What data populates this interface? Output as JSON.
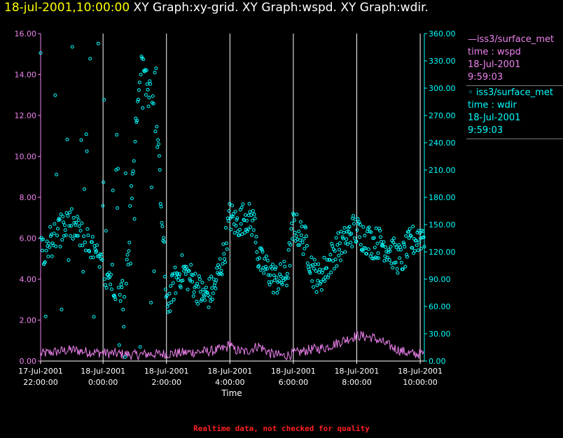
{
  "header": {
    "timestamp": "18-jul-2001,10:00:00",
    "titles": " XY Graph:xy-grid.  XY Graph:wspd.  XY Graph:wdir."
  },
  "legend": {
    "wspd": {
      "name": "iss3/surface_met",
      "line2": "time : wspd",
      "line3": "18-Jul-2001",
      "line4": "9:59:03"
    },
    "wdir": {
      "name": "iss3/surface_met",
      "line2": "time : wdir",
      "line3": "18-Jul-2001",
      "line4": "9:59:03"
    }
  },
  "footer": {
    "note": "Realtime data, not checked for quality"
  },
  "colors": {
    "wspd": "#ee82ee",
    "wdir": "#00ffff",
    "grid": "#ffffff",
    "header_ts": "#ffff00",
    "footer": "#ff2020"
  },
  "chart_data": {
    "type": "line",
    "xlabel": "Time",
    "x_range_hours": [
      -1.969,
      10.131
    ],
    "x_ticks": [
      {
        "h": -1.969,
        "date": "17-Jul-2001",
        "time": "22:00:00"
      },
      {
        "h": 0.0,
        "date": "18-Jul-2001",
        "time": "0:00:00"
      },
      {
        "h": 2.0,
        "date": "18-Jul-2001",
        "time": "2:00:00"
      },
      {
        "h": 4.0,
        "date": "18-Jul-2001",
        "time": "4:00:00"
      },
      {
        "h": 6.0,
        "date": "18-Jul-2001",
        "time": "6:00:00"
      },
      {
        "h": 8.0,
        "date": "18-Jul-2001",
        "time": "8:00:00"
      },
      {
        "h": 10.0,
        "date": "18-Jul-2001",
        "time": "10:00:00"
      }
    ],
    "x_gridlines_h": [
      0.0,
      2.0,
      4.0,
      6.0,
      8.0,
      10.0
    ],
    "left_axis": {
      "ylim": [
        0,
        16
      ],
      "ticks": [
        "0.00",
        "2.00",
        "4.00",
        "6.00",
        "8.00",
        "10.00",
        "12.00",
        "14.00",
        "16.00"
      ]
    },
    "right_axis": {
      "ylim": [
        0,
        360
      ],
      "ticks": [
        "0.00",
        "30.00",
        "60.00",
        "90.00",
        "120.00",
        "150.00",
        "180.00",
        "210.00",
        "240.00",
        "270.00",
        "300.00",
        "330.00",
        "360.00"
      ]
    },
    "series": [
      {
        "name": "wspd",
        "axis": "left",
        "style": "line",
        "anchors": [
          [
            -1.97,
            0.3
          ],
          [
            -1.5,
            0.4
          ],
          [
            -1.0,
            0.5
          ],
          [
            -0.5,
            0.4
          ],
          [
            0.0,
            0.35
          ],
          [
            0.5,
            0.3
          ],
          [
            1.0,
            0.25
          ],
          [
            1.5,
            0.3
          ],
          [
            2.0,
            0.3
          ],
          [
            2.5,
            0.35
          ],
          [
            3.0,
            0.4
          ],
          [
            3.5,
            0.45
          ],
          [
            3.9,
            0.6
          ],
          [
            4.0,
            0.9
          ],
          [
            4.1,
            0.5
          ],
          [
            4.5,
            0.4
          ],
          [
            4.9,
            0.7
          ],
          [
            5.3,
            0.3
          ],
          [
            5.7,
            0.2
          ],
          [
            6.0,
            0.3
          ],
          [
            6.5,
            0.5
          ],
          [
            7.0,
            0.6
          ],
          [
            7.5,
            0.9
          ],
          [
            8.0,
            1.2
          ],
          [
            8.5,
            1.1
          ],
          [
            8.9,
            0.8
          ],
          [
            9.3,
            0.5
          ],
          [
            9.7,
            0.3
          ],
          [
            10.1,
            0.3
          ]
        ],
        "noise": 0.25
      },
      {
        "name": "wdir",
        "axis": "right",
        "style": "scatter",
        "anchors": [
          [
            -1.97,
            120
          ],
          [
            -1.5,
            140
          ],
          [
            -1.0,
            150
          ],
          [
            -0.5,
            130
          ],
          [
            0.0,
            100
          ],
          [
            0.3,
            90
          ],
          [
            0.7,
            70
          ],
          [
            1.0,
            240
          ],
          [
            1.2,
            320
          ],
          [
            1.5,
            300
          ],
          [
            1.7,
            250
          ],
          [
            1.9,
            140
          ],
          [
            2.0,
            60
          ],
          [
            2.3,
            90
          ],
          [
            2.5,
            100
          ],
          [
            2.8,
            90
          ],
          [
            3.2,
            70
          ],
          [
            3.5,
            80
          ],
          [
            3.8,
            115
          ],
          [
            4.0,
            160
          ],
          [
            4.2,
            150
          ],
          [
            4.5,
            160
          ],
          [
            4.8,
            150
          ],
          [
            4.9,
            110
          ],
          [
            5.2,
            100
          ],
          [
            5.4,
            90
          ],
          [
            5.6,
            90
          ],
          [
            5.8,
            95
          ],
          [
            6.0,
            150
          ],
          [
            6.2,
            140
          ],
          [
            6.4,
            130
          ],
          [
            6.6,
            100
          ],
          [
            6.8,
            90
          ],
          [
            7.0,
            100
          ],
          [
            7.3,
            120
          ],
          [
            7.6,
            130
          ],
          [
            7.9,
            145
          ],
          [
            8.1,
            140
          ],
          [
            8.5,
            130
          ],
          [
            8.8,
            130
          ],
          [
            9.1,
            120
          ],
          [
            9.4,
            110
          ],
          [
            9.7,
            130
          ],
          [
            10.1,
            140
          ]
        ],
        "noise": 18
      }
    ]
  }
}
